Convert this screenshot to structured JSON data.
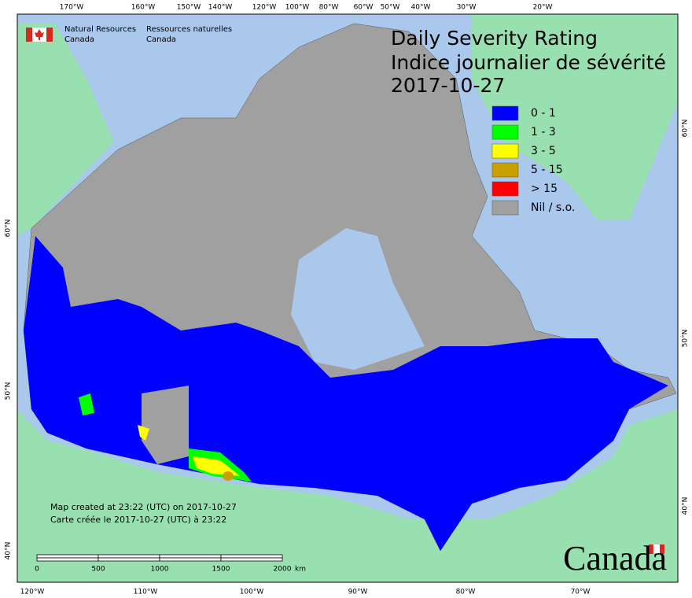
{
  "header": {
    "agency_en": [
      "Natural Resources",
      "Canada"
    ],
    "agency_fr": [
      "Ressources naturelles",
      "Canada"
    ],
    "title": [
      "Daily Severity Rating",
      "Indice journalier de sévérité",
      "2017-10-27"
    ]
  },
  "legend": [
    {
      "label": "0 - 1",
      "color": "#0000ff"
    },
    {
      "label": "1 - 3",
      "color": "#00ff00"
    },
    {
      "label": "3 - 5",
      "color": "#ffff00"
    },
    {
      "label": "5 - 15",
      "color": "#c8a000"
    },
    {
      "label": "> 15",
      "color": "#ff0000"
    },
    {
      "label": "Nil / s.o.",
      "color": "#a0a0a0"
    }
  ],
  "graticule": {
    "top": [
      "170°W",
      "160°W",
      "150°W",
      "140°W",
      "120°W",
      "100°W",
      "80°W",
      "60°W",
      "50°W",
      "40°W",
      "30°W",
      "20°W"
    ],
    "bottom": [
      "120°W",
      "110°W",
      "100°W",
      "90°W",
      "80°W",
      "70°W"
    ],
    "left": [
      "60°N",
      "50°N",
      "40°N"
    ],
    "right": [
      "60°N",
      "50°N",
      "40°N"
    ]
  },
  "footer": {
    "credit": [
      "Map created at 23:22 (UTC) on 2017-10-27",
      "Carte créée le 2017-10-27 (UTC) à 23:22"
    ],
    "scale": {
      "labels": [
        "0",
        "500",
        "1000",
        "1500",
        "2000"
      ],
      "unit": "km"
    },
    "wordmark": "Canada"
  }
}
